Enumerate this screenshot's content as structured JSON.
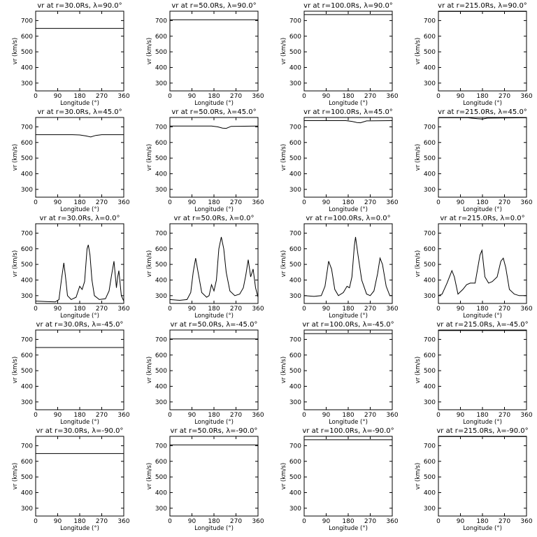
{
  "figure": {
    "xlabel": "Longitude (°)",
    "ylabel": "vr (km/s)",
    "x_ticks": [
      0,
      90,
      180,
      270,
      360
    ],
    "y_ticks": [
      300,
      400,
      500,
      600,
      700
    ],
    "xlim": [
      0,
      360
    ],
    "ylim": [
      250,
      760
    ]
  },
  "chart_data": [
    {
      "type": "line",
      "title": "vr at r=30.0Rs,  λ=90.0°",
      "xlim": [
        0,
        360
      ],
      "ylim": [
        250,
        760
      ],
      "x": [
        0,
        360
      ],
      "y": [
        650,
        650
      ]
    },
    {
      "type": "line",
      "title": "vr at r=50.0Rs,  λ=90.0°",
      "xlim": [
        0,
        360
      ],
      "ylim": [
        250,
        760
      ],
      "x": [
        0,
        360
      ],
      "y": [
        705,
        705
      ]
    },
    {
      "type": "line",
      "title": "vr at r=100.0Rs,  λ=90.0°",
      "xlim": [
        0,
        360
      ],
      "ylim": [
        250,
        760
      ],
      "x": [
        0,
        360
      ],
      "y": [
        738,
        738
      ]
    },
    {
      "type": "line",
      "title": "vr at r=215.0Rs,  λ=90.0°",
      "xlim": [
        0,
        360
      ],
      "ylim": [
        250,
        760
      ],
      "x": [
        0,
        360
      ],
      "y": [
        758,
        758
      ]
    },
    {
      "type": "line",
      "title": "vr at r=30.0Rs,  λ=45.0°",
      "xlim": [
        0,
        360
      ],
      "ylim": [
        250,
        760
      ],
      "x": [
        0,
        150,
        180,
        205,
        225,
        245,
        270,
        360
      ],
      "y": [
        650,
        650,
        648,
        642,
        635,
        645,
        650,
        650
      ]
    },
    {
      "type": "line",
      "title": "vr at r=50.0Rs,  λ=45.0°",
      "xlim": [
        0,
        360
      ],
      "ylim": [
        250,
        760
      ],
      "x": [
        0,
        170,
        195,
        215,
        230,
        250,
        360
      ],
      "y": [
        705,
        705,
        700,
        692,
        690,
        703,
        705
      ]
    },
    {
      "type": "line",
      "title": "vr at r=100.0Rs,  λ=45.0°",
      "xlim": [
        0,
        360
      ],
      "ylim": [
        250,
        760
      ],
      "x": [
        0,
        170,
        195,
        215,
        230,
        255,
        360
      ],
      "y": [
        740,
        740,
        735,
        728,
        726,
        738,
        740
      ]
    },
    {
      "type": "line",
      "title": "vr at r=215.0Rs,  λ=45.0°",
      "xlim": [
        0,
        360
      ],
      "ylim": [
        250,
        760
      ],
      "x": [
        0,
        120,
        140,
        160,
        180,
        200,
        360
      ],
      "y": [
        758,
        758,
        755,
        752,
        750,
        756,
        758
      ]
    },
    {
      "type": "line",
      "title": "vr at r=30.0Rs,  λ=0.0°",
      "xlim": [
        0,
        360
      ],
      "ylim": [
        250,
        760
      ],
      "x": [
        0,
        40,
        80,
        95,
        105,
        115,
        122,
        130,
        145,
        165,
        180,
        190,
        200,
        210,
        215,
        222,
        230,
        240,
        260,
        285,
        300,
        310,
        320,
        330,
        335,
        340,
        350,
        360
      ],
      "y": [
        265,
        262,
        260,
        275,
        400,
        510,
        420,
        300,
        275,
        290,
        360,
        340,
        390,
        600,
        625,
        560,
        400,
        300,
        275,
        280,
        330,
        430,
        520,
        350,
        420,
        460,
        300,
        265
      ]
    },
    {
      "type": "line",
      "title": "vr at r=50.0Rs,  λ=0.0°",
      "xlim": [
        0,
        360
      ],
      "ylim": [
        250,
        760
      ],
      "x": [
        0,
        40,
        70,
        85,
        95,
        105,
        115,
        130,
        150,
        160,
        170,
        180,
        190,
        200,
        210,
        220,
        230,
        245,
        265,
        285,
        300,
        310,
        320,
        330,
        340,
        350,
        360
      ],
      "y": [
        275,
        270,
        275,
        320,
        450,
        540,
        450,
        320,
        290,
        300,
        370,
        330,
        400,
        600,
        675,
        600,
        450,
        330,
        300,
        310,
        350,
        430,
        530,
        420,
        470,
        350,
        290
      ]
    },
    {
      "type": "line",
      "title": "vr at r=100.0Rs,  λ=0.0°",
      "xlim": [
        0,
        360
      ],
      "ylim": [
        250,
        760
      ],
      "x": [
        0,
        40,
        70,
        85,
        100,
        112,
        125,
        140,
        160,
        175,
        185,
        195,
        205,
        210,
        220,
        235,
        255,
        270,
        285,
        300,
        310,
        320,
        335,
        350,
        360
      ],
      "y": [
        300,
        295,
        300,
        360,
        520,
        470,
        340,
        300,
        320,
        360,
        350,
        420,
        620,
        675,
        560,
        400,
        310,
        300,
        330,
        440,
        540,
        500,
        360,
        300,
        300
      ]
    },
    {
      "type": "line",
      "title": "vr at r=215.0Rs,  λ=0.0°",
      "xlim": [
        0,
        360
      ],
      "ylim": [
        250,
        760
      ],
      "x": [
        0,
        15,
        35,
        55,
        65,
        80,
        100,
        115,
        130,
        150,
        170,
        178,
        190,
        205,
        220,
        240,
        255,
        265,
        275,
        290,
        310,
        330,
        360
      ],
      "y": [
        300,
        310,
        380,
        460,
        420,
        310,
        340,
        370,
        380,
        380,
        560,
        590,
        420,
        380,
        390,
        420,
        520,
        540,
        480,
        340,
        310,
        300,
        300
      ]
    },
    {
      "type": "line",
      "title": "vr at r=30.0Rs,  λ=-45.0°",
      "xlim": [
        0,
        360
      ],
      "ylim": [
        250,
        760
      ],
      "x": [
        0,
        360
      ],
      "y": [
        648,
        648
      ]
    },
    {
      "type": "line",
      "title": "vr at r=50.0Rs,  λ=-45.0°",
      "xlim": [
        0,
        360
      ],
      "ylim": [
        250,
        760
      ],
      "x": [
        0,
        360
      ],
      "y": [
        703,
        703
      ]
    },
    {
      "type": "line",
      "title": "vr at r=100.0Rs,  λ=-45.0°",
      "xlim": [
        0,
        360
      ],
      "ylim": [
        250,
        760
      ],
      "x": [
        0,
        360
      ],
      "y": [
        737,
        737
      ]
    },
    {
      "type": "line",
      "title": "vr at r=215.0Rs,  λ=-45.0°",
      "xlim": [
        0,
        360
      ],
      "ylim": [
        250,
        760
      ],
      "x": [
        0,
        360
      ],
      "y": [
        757,
        757
      ]
    },
    {
      "type": "line",
      "title": "vr at r=30.0Rs,  λ=-90.0°",
      "xlim": [
        0,
        360
      ],
      "ylim": [
        250,
        760
      ],
      "x": [
        0,
        360
      ],
      "y": [
        650,
        650
      ]
    },
    {
      "type": "line",
      "title": "vr at r=50.0Rs,  λ=-90.0°",
      "xlim": [
        0,
        360
      ],
      "ylim": [
        250,
        760
      ],
      "x": [
        0,
        360
      ],
      "y": [
        705,
        705
      ]
    },
    {
      "type": "line",
      "title": "vr at r=100.0Rs,  λ=-90.0°",
      "xlim": [
        0,
        360
      ],
      "ylim": [
        250,
        760
      ],
      "x": [
        0,
        360
      ],
      "y": [
        738,
        738
      ]
    },
    {
      "type": "line",
      "title": "vr at r=215.0Rs,  λ=-90.0°",
      "xlim": [
        0,
        360
      ],
      "ylim": [
        250,
        760
      ],
      "x": [
        0,
        360
      ],
      "y": [
        758,
        758
      ]
    }
  ]
}
